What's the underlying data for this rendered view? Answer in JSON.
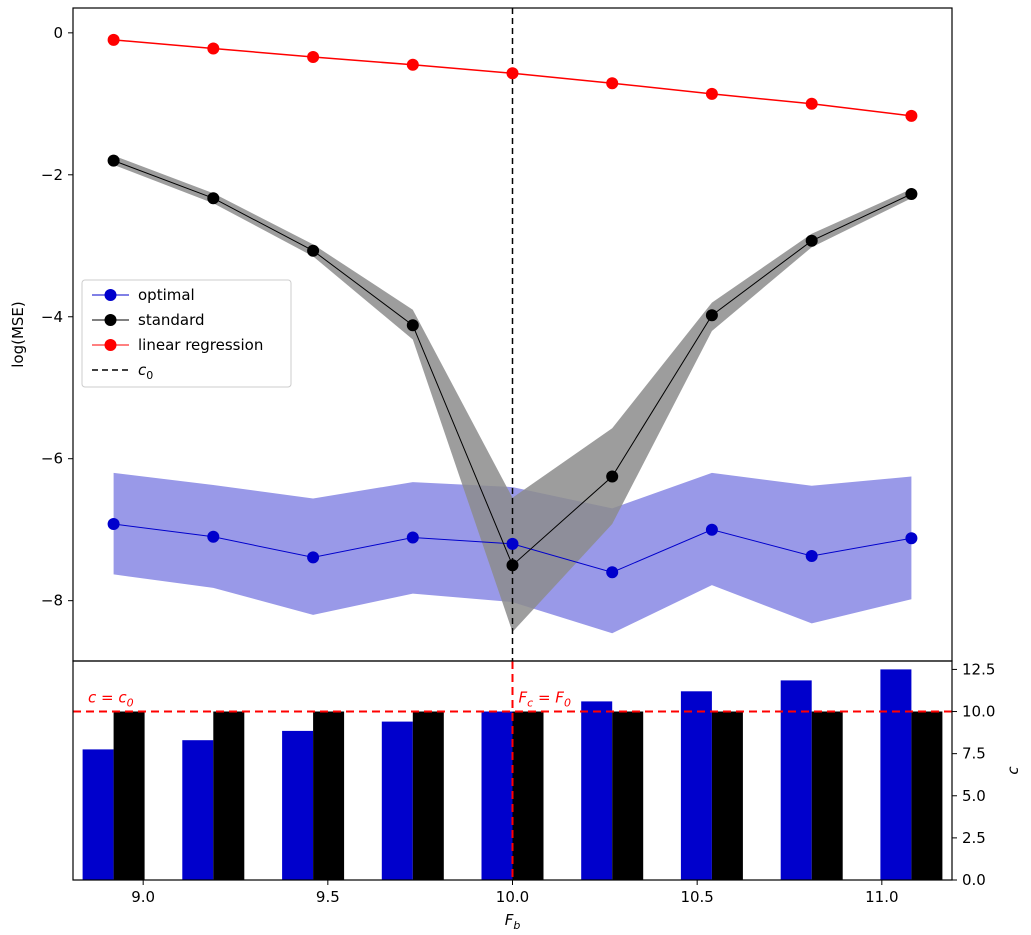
{
  "chart_data": [
    {
      "type": "line",
      "ylabel": "log(MSE)",
      "ylim": [
        -8.85,
        0.35
      ],
      "yticks": [
        0,
        -2,
        -4,
        -6,
        -8
      ],
      "ytick_labels": [
        "0",
        "−2",
        "−4",
        "−6",
        "−8"
      ],
      "x": [
        8.92,
        9.19,
        9.46,
        9.73,
        10.0,
        10.27,
        10.54,
        10.81,
        11.08
      ],
      "vline": 10.0,
      "series": [
        {
          "name": "optimal",
          "color": "#0000cc",
          "fill_color": "#9999e8",
          "values": [
            -6.92,
            -7.1,
            -7.39,
            -7.11,
            -7.2,
            -7.6,
            -7.0,
            -7.37,
            -7.12
          ],
          "lower": [
            -7.63,
            -7.82,
            -8.2,
            -7.9,
            -8.02,
            -8.46,
            -7.78,
            -8.32,
            -7.98
          ],
          "upper": [
            -6.2,
            -6.37,
            -6.56,
            -6.33,
            -6.4,
            -6.7,
            -6.2,
            -6.38,
            -6.25
          ]
        },
        {
          "name": "standard",
          "color": "#000000",
          "fill_color": "#8c8c8c",
          "values": [
            -1.8,
            -2.33,
            -3.07,
            -4.12,
            -7.5,
            -6.25,
            -3.98,
            -2.93,
            -2.27
          ],
          "lower": [
            -1.86,
            -2.4,
            -3.15,
            -4.32,
            -8.44,
            -6.92,
            -4.2,
            -3.02,
            -2.33
          ],
          "upper": [
            -1.73,
            -2.26,
            -2.98,
            -3.9,
            -6.55,
            -5.57,
            -3.8,
            -2.83,
            -2.2
          ]
        },
        {
          "name": "linear regression",
          "color": "#ff0000",
          "values": [
            -0.1,
            -0.22,
            -0.34,
            -0.45,
            -0.57,
            -0.71,
            -0.86,
            -1.0,
            -1.17
          ]
        },
        {
          "name": "c0_label",
          "color": "#000000"
        }
      ],
      "legend": {
        "placement": "center-left",
        "entries": [
          {
            "label": "optimal",
            "style": "line-marker",
            "color": "#0000cc"
          },
          {
            "label": "standard",
            "style": "line-marker",
            "color": "#000000"
          },
          {
            "label": "linear regression",
            "style": "line-marker",
            "color": "#ff0000"
          },
          {
            "label": "c",
            "sub": "0",
            "style": "dashed",
            "color": "#000000"
          }
        ]
      }
    },
    {
      "type": "bar",
      "xlabel": "F",
      "xlabel_sub": "b",
      "ylabel": "c",
      "ylim": [
        0,
        13.0
      ],
      "yticks": [
        0.0,
        2.5,
        5.0,
        7.5,
        10.0,
        12.5
      ],
      "ytick_labels": [
        "0.0",
        "2.5",
        "5.0",
        "7.5",
        "10.0",
        "12.5"
      ],
      "xlim": [
        8.81,
        11.19
      ],
      "xticks": [
        9.0,
        9.5,
        10.0,
        10.5,
        11.0
      ],
      "xtick_labels": [
        "9.0",
        "9.5",
        "10.0",
        "10.5",
        "11.0"
      ],
      "x": [
        8.92,
        9.19,
        9.46,
        9.73,
        10.0,
        10.27,
        10.54,
        10.81,
        11.08
      ],
      "series": [
        {
          "name": "optimal",
          "color": "#0000cc",
          "values": [
            7.75,
            8.3,
            8.85,
            9.4,
            10.0,
            10.6,
            11.2,
            11.85,
            12.5
          ]
        },
        {
          "name": "standard",
          "color": "#000000",
          "values": [
            10.0,
            10.0,
            10.0,
            10.0,
            10.0,
            10.0,
            10.0,
            10.0,
            10.0
          ]
        }
      ],
      "hline": 10.0,
      "vline": 10.0,
      "annotations": [
        {
          "text": "c = c",
          "sub": "0",
          "color": "#ff0000"
        },
        {
          "text": "F",
          "sub": "c",
          "tail": " = F",
          "sub2": "0",
          "color": "#ff0000"
        }
      ]
    }
  ]
}
